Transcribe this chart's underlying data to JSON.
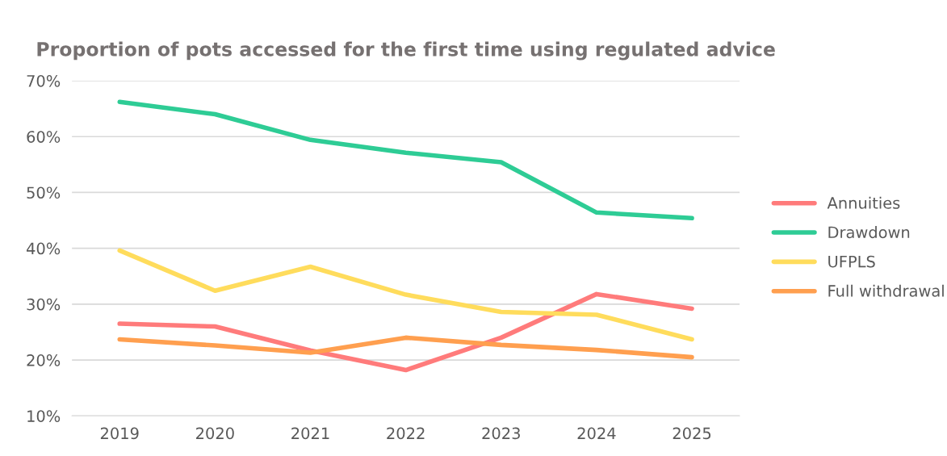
{
  "chart_data": {
    "type": "line",
    "title": "Proportion of pots accessed for the first time using regulated advice",
    "categories": [
      "2019",
      "2020",
      "2021",
      "2022",
      "2023",
      "2024",
      "2025"
    ],
    "series": [
      {
        "name": "Annuities",
        "color": "#ff7b7b",
        "values": [
          26.5,
          26.0,
          21.7,
          18.2,
          24.0,
          31.8,
          29.2
        ]
      },
      {
        "name": "Drawdown",
        "color": "#2ecc95",
        "values": [
          66.2,
          64.0,
          59.4,
          57.1,
          55.4,
          46.4,
          45.4
        ]
      },
      {
        "name": "UFPLS",
        "color": "#ffdc5c",
        "values": [
          39.6,
          32.4,
          36.7,
          31.7,
          28.6,
          28.1,
          23.7
        ]
      },
      {
        "name": "Full withdrawal",
        "color": "#ff9f4f",
        "values": [
          23.7,
          22.6,
          21.3,
          24.0,
          22.7,
          21.8,
          20.5
        ]
      }
    ],
    "ylim": [
      10,
      70
    ],
    "yticks": [
      {
        "value": 10,
        "label": "10%"
      },
      {
        "value": 20,
        "label": "20%"
      },
      {
        "value": 30,
        "label": "30%"
      },
      {
        "value": 40,
        "label": "40%"
      },
      {
        "value": 50,
        "label": "50%"
      },
      {
        "value": 60,
        "label": "60%"
      },
      {
        "value": 70,
        "label": "70%"
      }
    ],
    "grid": "y",
    "legend": "right",
    "marker": "none",
    "line_style": "solid"
  }
}
